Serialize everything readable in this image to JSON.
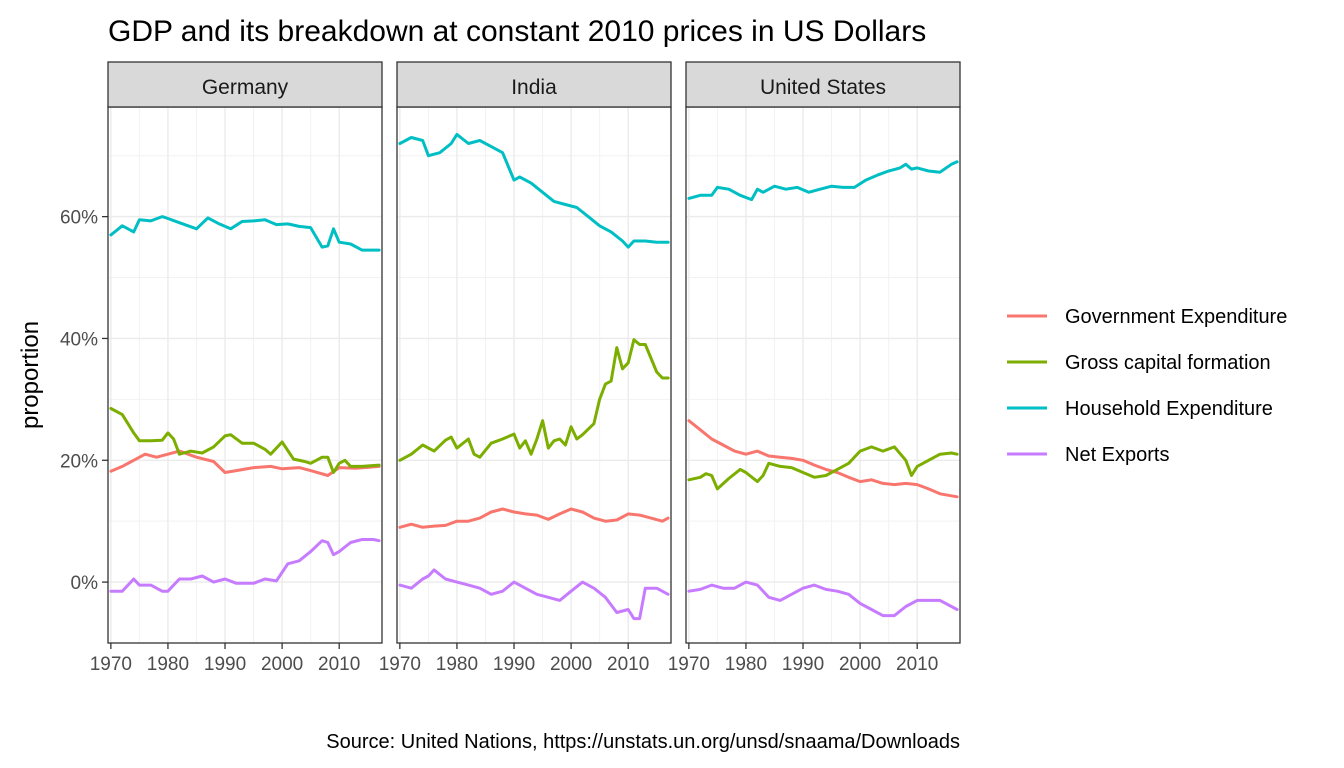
{
  "chart_data": {
    "type": "line",
    "title": "GDP and its breakdown at constant 2010 prices in US Dollars",
    "caption": "Source: United Nations, https://unstats.un.org/unsd/snaama/Downloads",
    "ylabel": "proportion",
    "xlabel": "",
    "x_ticks": [
      "1970",
      "1980",
      "1990",
      "2000",
      "2010"
    ],
    "y_ticks": [
      "0%",
      "20%",
      "40%",
      "60%"
    ],
    "y_tick_values": [
      0,
      0.2,
      0.4,
      0.6
    ],
    "x_tick_values": [
      1970,
      1980,
      1990,
      2000,
      2010
    ],
    "xlim": [
      1969.5,
      2017.5
    ],
    "ylim": [
      -0.1,
      0.78
    ],
    "grid": true,
    "legend_position": "right",
    "series_names": [
      "Government Expenditure",
      "Gross capital formation",
      "Household Expenditure",
      "Net Exports"
    ],
    "colors": {
      "Government Expenditure": "#F8766D",
      "Gross capital formation": "#7CAE00",
      "Household Expenditure": "#00BFC4",
      "Net Exports": "#C77CFF"
    },
    "panels": [
      {
        "label": "Germany",
        "series": [
          {
            "name": "Government Expenditure",
            "x": [
              1970,
              1972,
              1974,
              1976,
              1978,
              1980,
              1982,
              1985,
              1988,
              1990,
              1992,
              1995,
              1998,
              2000,
              2003,
              2005,
              2008,
              2010,
              2013,
              2017
            ],
            "values": [
              0.182,
              0.19,
              0.2,
              0.21,
              0.205,
              0.21,
              0.215,
              0.205,
              0.198,
              0.18,
              0.183,
              0.188,
              0.19,
              0.186,
              0.188,
              0.183,
              0.175,
              0.188,
              0.187,
              0.19
            ]
          },
          {
            "name": "Gross capital formation",
            "x": [
              1970,
              1972,
              1974,
              1975,
              1977,
              1979,
              1980,
              1981,
              1982,
              1984,
              1986,
              1988,
              1990,
              1991,
              1993,
              1995,
              1997,
              1998,
              2000,
              2002,
              2004,
              2005,
              2006,
              2007,
              2008,
              2009,
              2010,
              2011,
              2012,
              2014,
              2017
            ],
            "values": [
              0.285,
              0.275,
              0.245,
              0.232,
              0.232,
              0.233,
              0.245,
              0.235,
              0.21,
              0.215,
              0.212,
              0.222,
              0.24,
              0.242,
              0.228,
              0.228,
              0.218,
              0.21,
              0.23,
              0.202,
              0.198,
              0.195,
              0.2,
              0.205,
              0.205,
              0.18,
              0.195,
              0.2,
              0.19,
              0.19,
              0.192
            ]
          },
          {
            "name": "Household Expenditure",
            "x": [
              1970,
              1972,
              1974,
              1975,
              1977,
              1979,
              1980,
              1982,
              1985,
              1987,
              1989,
              1991,
              1993,
              1995,
              1997,
              1999,
              2001,
              2003,
              2005,
              2007,
              2008,
              2009,
              2010,
              2012,
              2014,
              2017
            ],
            "values": [
              0.57,
              0.585,
              0.575,
              0.595,
              0.593,
              0.6,
              0.597,
              0.59,
              0.58,
              0.598,
              0.588,
              0.58,
              0.592,
              0.593,
              0.595,
              0.587,
              0.588,
              0.584,
              0.582,
              0.55,
              0.552,
              0.58,
              0.558,
              0.555,
              0.545,
              0.545
            ]
          },
          {
            "name": "Net Exports",
            "x": [
              1970,
              1972,
              1974,
              1975,
              1977,
              1979,
              1980,
              1982,
              1984,
              1986,
              1988,
              1990,
              1992,
              1995,
              1997,
              1999,
              2001,
              2003,
              2005,
              2007,
              2008,
              2009,
              2010,
              2012,
              2014,
              2016,
              2017
            ],
            "values": [
              -0.015,
              -0.015,
              0.005,
              -0.005,
              -0.005,
              -0.015,
              -0.015,
              0.005,
              0.005,
              0.01,
              0.0,
              0.005,
              -0.002,
              -0.002,
              0.005,
              0.002,
              0.03,
              0.035,
              0.05,
              0.068,
              0.065,
              0.045,
              0.05,
              0.065,
              0.07,
              0.07,
              0.068
            ]
          }
        ]
      },
      {
        "label": "India",
        "series": [
          {
            "name": "Government Expenditure",
            "x": [
              1970,
              1972,
              1974,
              1976,
              1978,
              1980,
              1982,
              1984,
              1986,
              1988,
              1990,
              1992,
              1994,
              1996,
              1998,
              2000,
              2002,
              2004,
              2006,
              2008,
              2010,
              2012,
              2014,
              2016,
              2017
            ],
            "values": [
              0.09,
              0.095,
              0.09,
              0.092,
              0.093,
              0.1,
              0.1,
              0.105,
              0.115,
              0.12,
              0.115,
              0.112,
              0.11,
              0.103,
              0.112,
              0.12,
              0.115,
              0.105,
              0.1,
              0.102,
              0.112,
              0.11,
              0.105,
              0.1,
              0.105
            ]
          },
          {
            "name": "Gross capital formation",
            "x": [
              1970,
              1972,
              1974,
              1976,
              1978,
              1979,
              1980,
              1982,
              1983,
              1984,
              1986,
              1988,
              1990,
              1991,
              1992,
              1993,
              1994,
              1995,
              1996,
              1997,
              1998,
              1999,
              2000,
              2001,
              2002,
              2004,
              2005,
              2006,
              2007,
              2008,
              2009,
              2010,
              2011,
              2012,
              2013,
              2015,
              2016,
              2017
            ],
            "values": [
              0.2,
              0.21,
              0.225,
              0.215,
              0.233,
              0.238,
              0.22,
              0.235,
              0.21,
              0.205,
              0.228,
              0.235,
              0.243,
              0.22,
              0.232,
              0.21,
              0.235,
              0.265,
              0.22,
              0.232,
              0.235,
              0.225,
              0.255,
              0.235,
              0.242,
              0.26,
              0.3,
              0.325,
              0.33,
              0.385,
              0.35,
              0.36,
              0.398,
              0.39,
              0.39,
              0.345,
              0.335,
              0.335
            ]
          },
          {
            "name": "Household Expenditure",
            "x": [
              1970,
              1972,
              1974,
              1975,
              1977,
              1979,
              1980,
              1982,
              1984,
              1986,
              1988,
              1990,
              1991,
              1993,
              1995,
              1997,
              1999,
              2001,
              2003,
              2005,
              2007,
              2009,
              2010,
              2011,
              2013,
              2015,
              2017
            ],
            "values": [
              0.72,
              0.73,
              0.725,
              0.7,
              0.705,
              0.72,
              0.735,
              0.72,
              0.725,
              0.715,
              0.705,
              0.66,
              0.665,
              0.655,
              0.64,
              0.625,
              0.62,
              0.615,
              0.6,
              0.585,
              0.575,
              0.56,
              0.55,
              0.56,
              0.56,
              0.558,
              0.558
            ]
          },
          {
            "name": "Net Exports",
            "x": [
              1970,
              1972,
              1974,
              1975,
              1976,
              1978,
              1980,
              1982,
              1984,
              1986,
              1988,
              1990,
              1992,
              1994,
              1996,
              1998,
              2000,
              2002,
              2004,
              2006,
              2008,
              2010,
              2011,
              2012,
              2013,
              2015,
              2017
            ],
            "values": [
              -0.005,
              -0.01,
              0.005,
              0.01,
              0.02,
              0.005,
              0.0,
              -0.005,
              -0.01,
              -0.02,
              -0.015,
              0.0,
              -0.01,
              -0.02,
              -0.025,
              -0.03,
              -0.015,
              0.0,
              -0.01,
              -0.025,
              -0.05,
              -0.045,
              -0.06,
              -0.06,
              -0.01,
              -0.01,
              -0.02
            ]
          }
        ]
      },
      {
        "label": "United States",
        "series": [
          {
            "name": "Government Expenditure",
            "x": [
              1970,
              1972,
              1974,
              1976,
              1978,
              1980,
              1982,
              1984,
              1986,
              1988,
              1990,
              1992,
              1994,
              1996,
              1998,
              2000,
              2002,
              2004,
              2006,
              2008,
              2010,
              2012,
              2014,
              2017
            ],
            "values": [
              0.265,
              0.25,
              0.235,
              0.225,
              0.215,
              0.21,
              0.215,
              0.207,
              0.205,
              0.203,
              0.2,
              0.192,
              0.185,
              0.18,
              0.172,
              0.165,
              0.168,
              0.162,
              0.16,
              0.162,
              0.16,
              0.153,
              0.145,
              0.14
            ]
          },
          {
            "name": "Gross capital formation",
            "x": [
              1970,
              1972,
              1973,
              1974,
              1975,
              1977,
              1979,
              1980,
              1982,
              1983,
              1984,
              1986,
              1988,
              1990,
              1992,
              1994,
              1996,
              1998,
              2000,
              2002,
              2004,
              2006,
              2008,
              2009,
              2010,
              2012,
              2014,
              2016,
              2017
            ],
            "values": [
              0.168,
              0.172,
              0.178,
              0.175,
              0.153,
              0.17,
              0.185,
              0.18,
              0.165,
              0.175,
              0.195,
              0.19,
              0.188,
              0.18,
              0.172,
              0.175,
              0.185,
              0.195,
              0.215,
              0.222,
              0.215,
              0.222,
              0.2,
              0.175,
              0.19,
              0.2,
              0.21,
              0.212,
              0.21
            ]
          },
          {
            "name": "Household Expenditure",
            "x": [
              1970,
              1972,
              1974,
              1975,
              1977,
              1979,
              1981,
              1982,
              1983,
              1985,
              1987,
              1989,
              1991,
              1993,
              1995,
              1997,
              1999,
              2001,
              2003,
              2005,
              2007,
              2008,
              2009,
              2010,
              2012,
              2014,
              2016,
              2017
            ],
            "values": [
              0.63,
              0.635,
              0.635,
              0.648,
              0.645,
              0.635,
              0.628,
              0.645,
              0.64,
              0.65,
              0.645,
              0.648,
              0.64,
              0.645,
              0.65,
              0.648,
              0.648,
              0.66,
              0.668,
              0.675,
              0.68,
              0.686,
              0.678,
              0.68,
              0.675,
              0.673,
              0.686,
              0.69
            ]
          },
          {
            "name": "Net Exports",
            "x": [
              1970,
              1972,
              1974,
              1976,
              1978,
              1980,
              1982,
              1984,
              1986,
              1988,
              1990,
              1992,
              1994,
              1996,
              1998,
              2000,
              2002,
              2004,
              2006,
              2008,
              2010,
              2012,
              2014,
              2017
            ],
            "values": [
              -0.015,
              -0.012,
              -0.005,
              -0.01,
              -0.01,
              0.0,
              -0.005,
              -0.025,
              -0.03,
              -0.02,
              -0.01,
              -0.005,
              -0.012,
              -0.015,
              -0.02,
              -0.035,
              -0.045,
              -0.055,
              -0.055,
              -0.04,
              -0.03,
              -0.03,
              -0.03,
              -0.045
            ]
          }
        ]
      }
    ]
  }
}
